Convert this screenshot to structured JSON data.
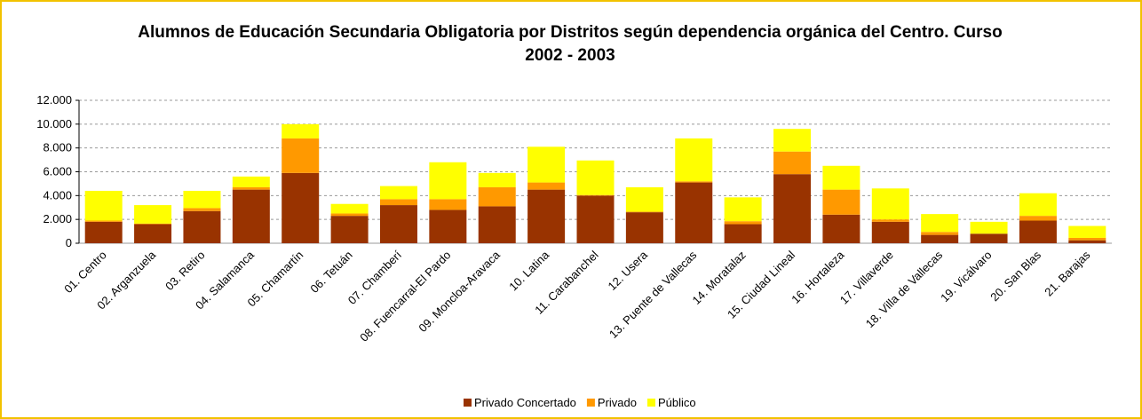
{
  "chart_data": {
    "type": "stacked_bar",
    "title": "Alumnos de Educación Secundaria Obligatoria por Distritos según dependencia orgánica del Centro. Curso 2002 - 2003",
    "categories": [
      "01. Centro",
      "02. Arganzuela",
      "03. Retiro",
      "04. Salamanca",
      "05. Chamartín",
      "06. Tetuán",
      "07. Chamberí",
      "08. Fuencarral-El Pardo",
      "09. Moncloa-Aravaca",
      "10. Latina",
      "11. Carabanchel",
      "12. Usera",
      "13. Puente de Vallecas",
      "14. Moratalaz",
      "15. Ciudad Lineal",
      "16. Hortaleza",
      "17. Villaverde",
      "18. Villa de Vallecas",
      "19. Vicálvaro",
      "20. San Blas",
      "21. Barajas"
    ],
    "series": [
      {
        "name": "Privado Concertado",
        "color": "#993300",
        "values": [
          1800,
          1600,
          2700,
          4500,
          5900,
          2300,
          3200,
          2800,
          3100,
          4500,
          4000,
          2600,
          5100,
          1600,
          5800,
          2400,
          1800,
          700,
          800,
          1900,
          250
        ]
      },
      {
        "name": "Privado",
        "color": "#ff9900",
        "values": [
          100,
          50,
          250,
          200,
          2900,
          200,
          500,
          900,
          1600,
          600,
          50,
          50,
          100,
          250,
          1900,
          2100,
          200,
          250,
          0,
          400,
          200
        ]
      },
      {
        "name": "Público",
        "color": "#ffff00",
        "values": [
          2500,
          1550,
          1450,
          900,
          1200,
          800,
          1100,
          3100,
          1200,
          3000,
          2900,
          2050,
          3600,
          2000,
          1900,
          2000,
          2600,
          1500,
          1000,
          1900,
          1000
        ]
      }
    ],
    "ylim": [
      0,
      12000
    ],
    "yticks": [
      0,
      {
        "value": 2000,
        "label": "2.000"
      },
      {
        "value": 4000,
        "label": "4.000"
      },
      {
        "value": 6000,
        "label": "6.000"
      },
      {
        "value": 8000,
        "label": "8.000"
      },
      {
        "value": 10000,
        "label": "10.000"
      },
      {
        "value": 12000,
        "label": "12.000"
      }
    ],
    "grid": true,
    "legend": "bottom"
  }
}
